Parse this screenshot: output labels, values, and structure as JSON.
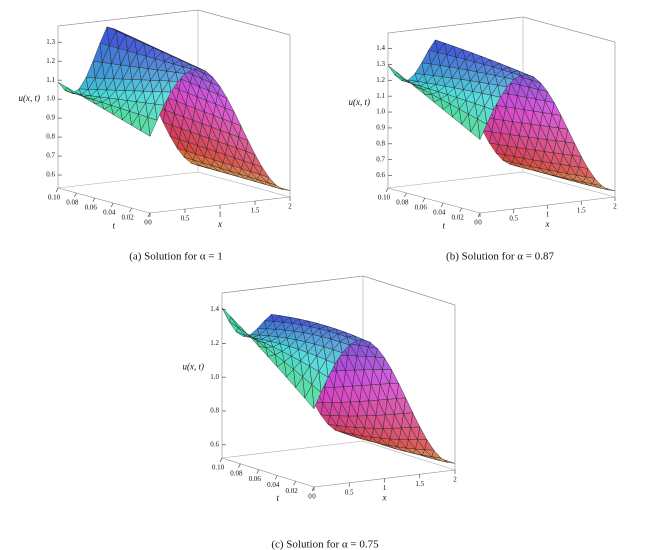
{
  "panels": [
    {
      "z_label": "u(x, t)",
      "t_label": "t",
      "x_label": "x",
      "z_ticks": [
        "0.6",
        "0.7",
        "0.8",
        "0.9",
        "1.0",
        "1.1",
        "1.2",
        "1.3"
      ],
      "t_ticks": [
        "0.10",
        "0.08",
        "0.06",
        "0.04",
        "0.02",
        "0"
      ],
      "x_ticks": [
        "0",
        "0.5",
        "1",
        "1.5",
        "2"
      ],
      "caption": "(a) Solution for α = 1"
    },
    {
      "z_label": "u(x, t)",
      "t_label": "t",
      "x_label": "x",
      "z_ticks": [
        "0.6",
        "0.7",
        "0.8",
        "0.9",
        "1.0",
        "1.1",
        "1.2",
        "1.3",
        "1.4"
      ],
      "t_ticks": [
        "0.10",
        "0.08",
        "0.06",
        "0.04",
        "0.02",
        "0"
      ],
      "x_ticks": [
        "0",
        "0.5",
        "1",
        "1.5",
        "2"
      ],
      "caption": "(b) Solution for α = 0.87"
    },
    {
      "z_label": "u(x, t)",
      "t_label": "t",
      "x_label": "x",
      "z_ticks": [
        "0.6",
        "0.8",
        "1.0",
        "1.2",
        "1.4"
      ],
      "t_ticks": [
        "0.10",
        "0.08",
        "0.06",
        "0.04",
        "0.02",
        "0"
      ],
      "x_ticks": [
        "0",
        "0.5",
        "1",
        "1.5",
        "2"
      ],
      "caption": "(c) Solution for α = 0.75"
    }
  ]
}
